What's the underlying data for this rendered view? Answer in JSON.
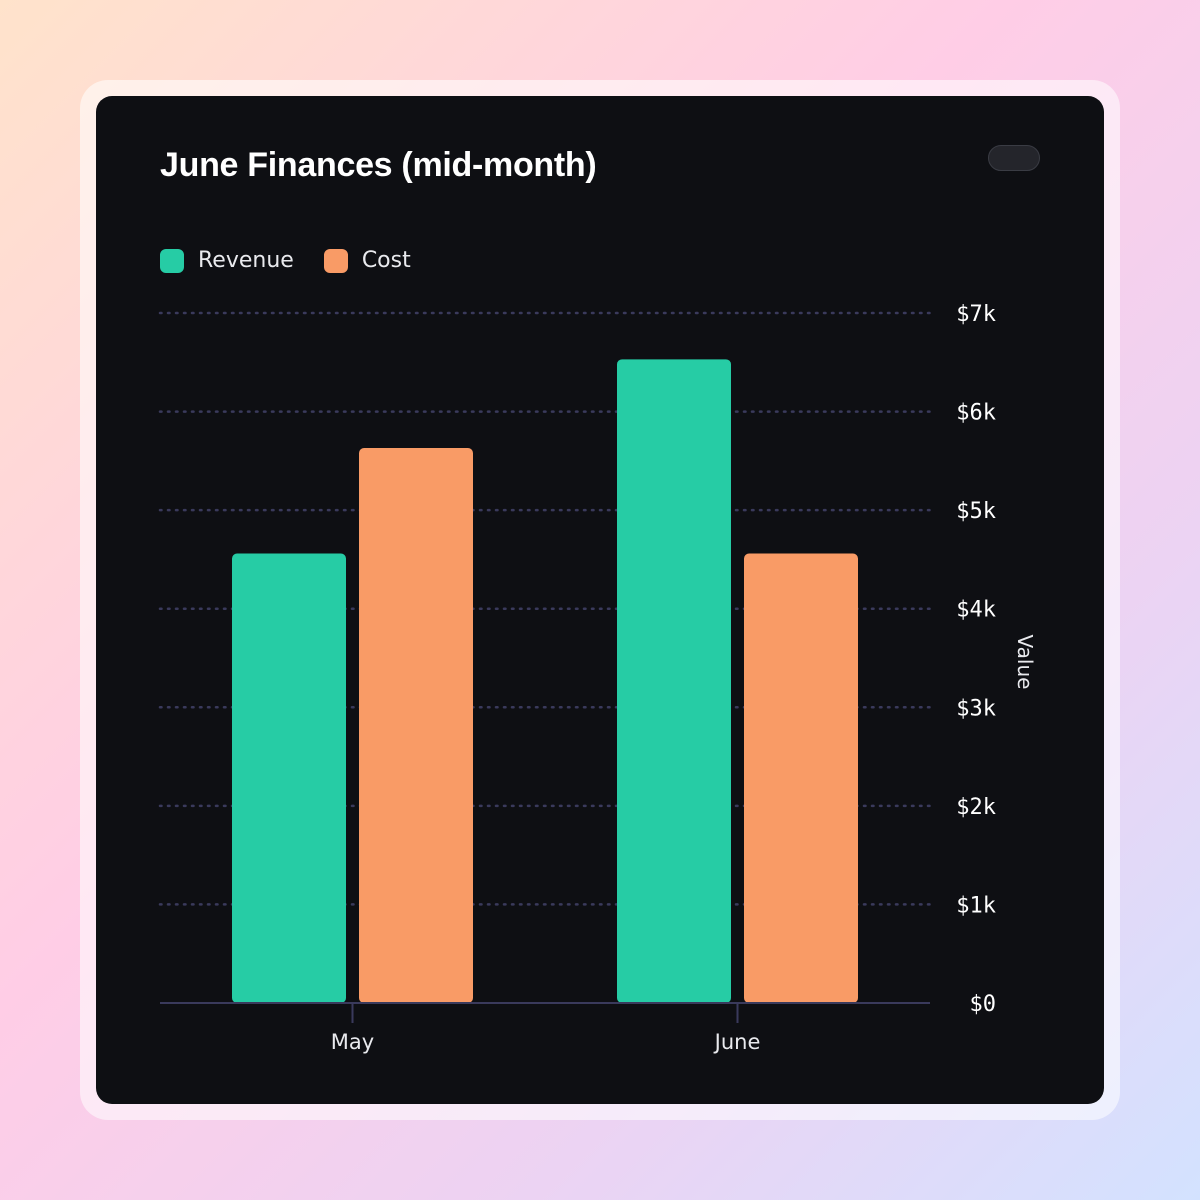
{
  "title": "June Finances (mid-month)",
  "chart_data": {
    "type": "bar",
    "title": "June Finances (mid-month)",
    "categories": [
      "May",
      "June"
    ],
    "series": [
      {
        "name": "Revenue",
        "color": "#26cca5",
        "values": [
          4560,
          6530
        ]
      },
      {
        "name": "Cost",
        "color": "#f99b66",
        "values": [
          5630,
          4560
        ]
      }
    ],
    "xlabel": "",
    "ylabel": "Value",
    "ylim": [
      0,
      7000
    ],
    "yticks": [
      0,
      1000,
      2000,
      3000,
      4000,
      5000,
      6000,
      7000
    ],
    "ytick_labels": [
      "$0",
      "$1k",
      "$2k",
      "$3k",
      "$4k",
      "$5k",
      "$6k",
      "$7k"
    ],
    "y_axis_side": "right",
    "grid": true,
    "legend_position": "top-left"
  }
}
